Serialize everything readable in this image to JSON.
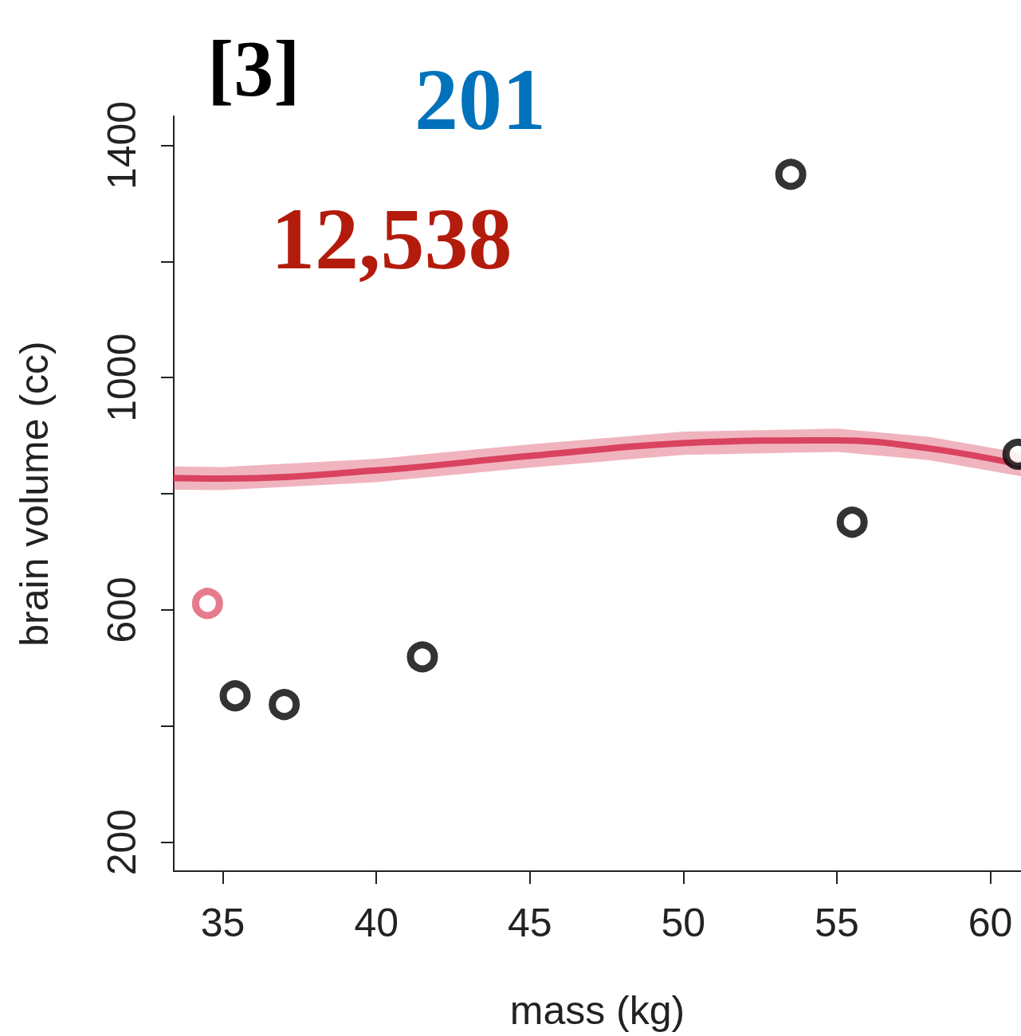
{
  "chart_data": {
    "type": "scatter",
    "title": "[3]",
    "annotations": [
      "201",
      "12,538"
    ],
    "xlabel": "mass (kg)",
    "ylabel": "brain volume (cc)",
    "xlim": [
      33.4,
      61
    ],
    "ylim": [
      150,
      1450
    ],
    "xticks": [
      35,
      40,
      45,
      50,
      55,
      60
    ],
    "yticks": [
      200,
      {
        "value": 400,
        "label": null
      },
      600,
      {
        "value": 800,
        "label": null
      },
      1000,
      {
        "value": 1200,
        "label": null
      },
      1400
    ],
    "grid": false,
    "marker": "circle",
    "series": [
      {
        "type": "line",
        "color": "#d9435f",
        "marker": "none",
        "x": [
          33.4,
          35,
          40,
          45,
          50,
          55,
          58,
          61
        ],
        "values": [
          827,
          826,
          840,
          865,
          887,
          892,
          878,
          850
        ],
        "lower": [
          807,
          806,
          820,
          845,
          867,
          872,
          858,
          830
        ],
        "upper": [
          847,
          846,
          860,
          885,
          907,
          912,
          898,
          870
        ]
      },
      {
        "color": "#000000",
        "x": [
          35.4,
          37.0,
          41.5,
          53.5,
          55.5,
          60.9
        ],
        "values": [
          452,
          437,
          519,
          1350,
          751,
          868
        ]
      },
      {
        "color": "#e05a6e",
        "x": [
          34.5
        ],
        "values": [
          611
        ]
      }
    ]
  }
}
